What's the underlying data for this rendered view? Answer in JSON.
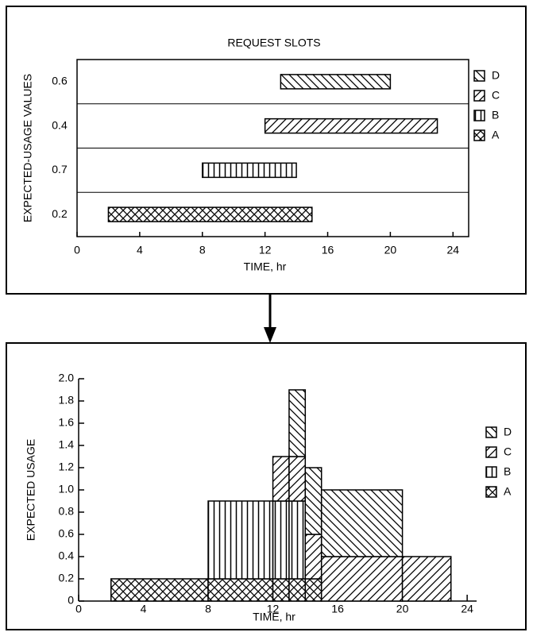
{
  "chart_data": [
    {
      "type": "gantt",
      "title": "REQUEST SLOTS",
      "y_label": "EXPECTED-USAGE VALUES",
      "x_label": "TIME, hr",
      "xlim": [
        0,
        25
      ],
      "xticks": [
        0,
        4,
        8,
        12,
        16,
        20,
        24
      ],
      "series": [
        {
          "name": "A",
          "start": 2,
          "end": 15,
          "value": 0.2
        },
        {
          "name": "B",
          "start": 8,
          "end": 14,
          "value": 0.7
        },
        {
          "name": "C",
          "start": 12,
          "end": 23,
          "value": 0.4
        },
        {
          "name": "D",
          "start": 13,
          "end": 20,
          "value": 0.6
        }
      ]
    },
    {
      "type": "stacked-step",
      "y_label": "EXPECTED USAGE",
      "x_label": "TIME, hr",
      "xlim": [
        0,
        25
      ],
      "xticks": [
        0,
        4,
        8,
        12,
        16,
        20,
        24
      ],
      "ylim": [
        0,
        2
      ],
      "yticks": [
        0,
        0.2,
        0.4,
        0.6,
        0.8,
        {
          "value": 1,
          "label": "1.0"
        },
        1.2,
        1.4,
        1.6,
        1.8,
        {
          "value": 2,
          "label": "2.0"
        }
      ],
      "series": [
        {
          "name": "A",
          "start": 2,
          "end": 15,
          "value": 0.2
        },
        {
          "name": "B",
          "start": 8,
          "end": 14,
          "value": 0.7
        },
        {
          "name": "C",
          "start": 12,
          "end": 23,
          "value": 0.4
        },
        {
          "name": "D",
          "start": 13,
          "end": 20,
          "value": 0.6
        }
      ]
    }
  ]
}
